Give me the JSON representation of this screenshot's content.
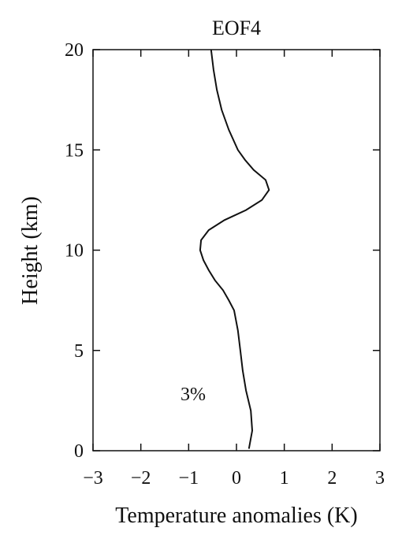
{
  "chart_data": {
    "type": "line",
    "title": "EOF4",
    "x_label": "Temperature anomalies (K)",
    "y_label": "Height (km)",
    "annotation": "3%",
    "xlim": [
      -3,
      3
    ],
    "ylim": [
      0,
      20
    ],
    "xticks": [
      {
        "value": -3,
        "label": "−3"
      },
      {
        "value": -2,
        "label": "−2"
      },
      {
        "value": -1,
        "label": "−1"
      },
      0,
      1,
      2,
      3
    ],
    "yticks": [
      0,
      5,
      10,
      15,
      20
    ],
    "color": "#111111",
    "x": [
      0.26,
      0.33,
      0.3,
      0.2,
      0.13,
      0.08,
      0.03,
      -0.05,
      -0.16,
      -0.28,
      -0.45,
      -0.58,
      -0.69,
      -0.76,
      -0.74,
      -0.58,
      -0.25,
      0.2,
      0.53,
      0.68,
      0.61,
      0.36,
      0.18,
      0.03,
      -0.16,
      -0.31,
      -0.41,
      -0.48,
      -0.53
    ],
    "values": [
      0.1,
      1,
      2,
      3,
      4,
      5,
      6,
      7,
      7.5,
      8,
      8.5,
      9,
      9.5,
      10,
      10.5,
      11,
      11.5,
      12,
      12.5,
      13,
      13.5,
      14,
      14.5,
      15,
      16,
      17,
      18,
      19,
      20
    ]
  }
}
